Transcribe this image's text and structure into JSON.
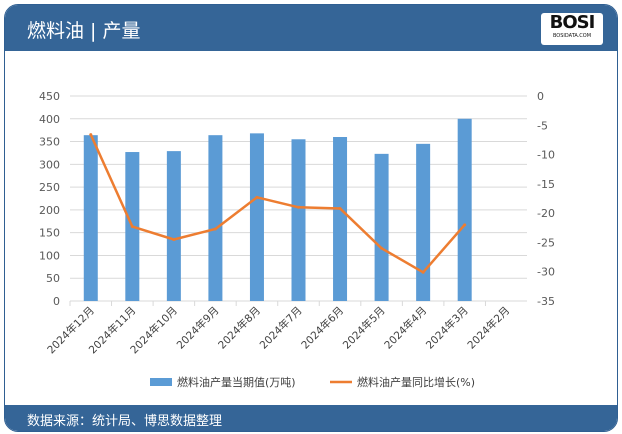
{
  "header": {
    "title": "燃料油 | 产量",
    "logo_text": "BOSI",
    "logo_sub": "BOSIDATA.COM"
  },
  "footer": {
    "source": "数据来源：统计局、博思数据整理"
  },
  "chart_data": {
    "type": "bar+line",
    "categories": [
      "2024年12月",
      "2024年11月",
      "2024年10月",
      "2024年9月",
      "2024年8月",
      "2024年7月",
      "2024年6月",
      "2024年5月",
      "2024年4月",
      "2024年3月",
      "2024年2月"
    ],
    "series": [
      {
        "name": "燃料油产量当期值(万吨)",
        "type": "bar",
        "axis": "left",
        "color": "#5b9bd5",
        "values": [
          364,
          327,
          329,
          364,
          368,
          355,
          360,
          323,
          345,
          400,
          null
        ]
      },
      {
        "name": "燃料油产量同比增长(%)",
        "type": "line",
        "axis": "right",
        "color": "#ed7d31",
        "values": [
          -6.6,
          -22.3,
          -24.5,
          -22.7,
          -17.3,
          -19.0,
          -19.2,
          -26.0,
          -30.1,
          -22.0,
          null
        ]
      }
    ],
    "ylim_left": [
      0,
      450
    ],
    "yticks_left": [
      0,
      50,
      100,
      150,
      200,
      250,
      300,
      350,
      400,
      450
    ],
    "ylim_right": [
      -35,
      0
    ],
    "yticks_right": [
      -35,
      -30,
      -25,
      -20,
      -15,
      -10,
      -5,
      0
    ],
    "grid": true,
    "legend": "bottom"
  }
}
